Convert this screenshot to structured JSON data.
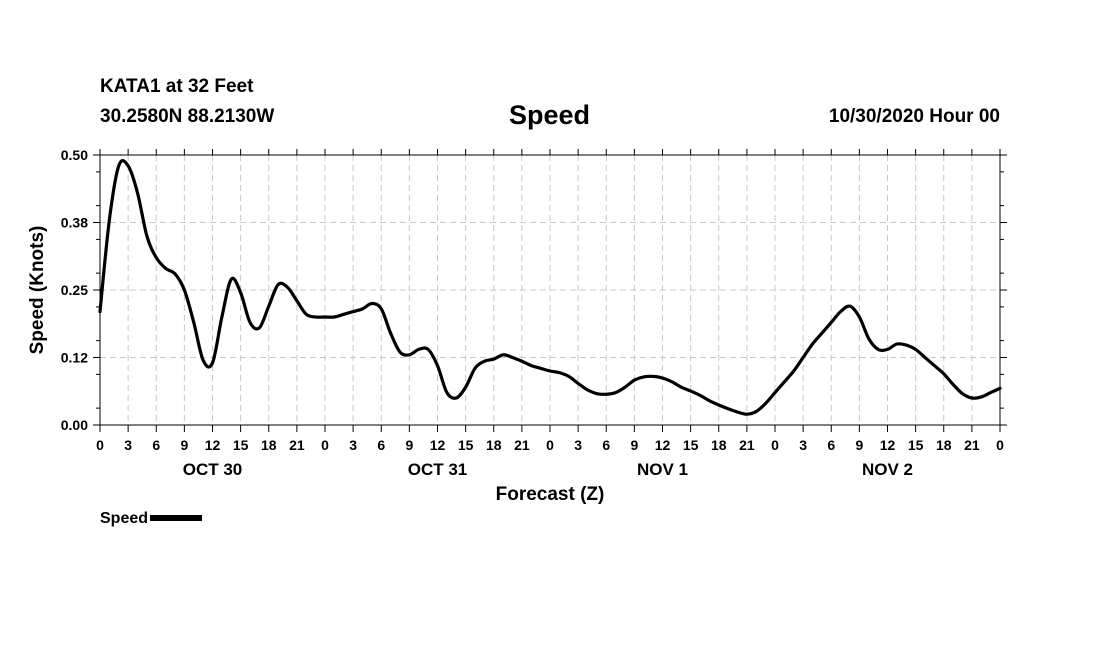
{
  "header": {
    "station": "KATA1 at 32 Feet",
    "coords": "30.2580N 88.2130W",
    "title": "Speed",
    "datetime": "10/30/2020 Hour 00"
  },
  "legend": {
    "label": "Speed"
  },
  "chart_data": {
    "type": "line",
    "title": "Speed",
    "xlabel": "Forecast (Z)",
    "ylabel": "Speed (Knots)",
    "xlim": [
      0,
      96
    ],
    "ylim": [
      0,
      0.5
    ],
    "ytick_labels": [
      "0.00",
      "0.12",
      "0.25",
      "0.38",
      "0.50"
    ],
    "xtick_labels": [
      "0",
      "3",
      "6",
      "9",
      "12",
      "15",
      "18",
      "21",
      "0",
      "3",
      "6",
      "9",
      "12",
      "15",
      "18",
      "21",
      "0",
      "3",
      "6",
      "9",
      "12",
      "15",
      "18",
      "21",
      "0",
      "3",
      "6",
      "9",
      "12",
      "15",
      "18",
      "21",
      "0"
    ],
    "day_labels": [
      {
        "label": "OCT 30",
        "hour": 12
      },
      {
        "label": "OCT 31",
        "hour": 36
      },
      {
        "label": "NOV 1",
        "hour": 60
      },
      {
        "label": "NOV 2",
        "hour": 84
      }
    ],
    "grid": true,
    "legend_position": "bottom-left",
    "series": [
      {
        "name": "Speed",
        "color": "#000000",
        "x": [
          0,
          1,
          2,
          3,
          4,
          5,
          6,
          7,
          8,
          9,
          10,
          11,
          12,
          13,
          14,
          15,
          16,
          17,
          18,
          19,
          20,
          21,
          22,
          23,
          24,
          25,
          26,
          27,
          28,
          29,
          30,
          31,
          32,
          33,
          34,
          35,
          36,
          37,
          38,
          39,
          40,
          41,
          42,
          43,
          44,
          45,
          46,
          47,
          48,
          49,
          50,
          51,
          52,
          53,
          54,
          55,
          56,
          57,
          58,
          59,
          60,
          61,
          62,
          63,
          64,
          65,
          66,
          67,
          68,
          69,
          70,
          71,
          72,
          73,
          74,
          75,
          76,
          77,
          78,
          79,
          80,
          81,
          82,
          83,
          84,
          85,
          86,
          87,
          88,
          89,
          90,
          91,
          92,
          93,
          94,
          95,
          96
        ],
        "values": [
          0.21,
          0.38,
          0.48,
          0.48,
          0.43,
          0.35,
          0.31,
          0.29,
          0.28,
          0.25,
          0.19,
          0.12,
          0.115,
          0.2,
          0.27,
          0.245,
          0.19,
          0.18,
          0.22,
          0.26,
          0.255,
          0.23,
          0.205,
          0.2,
          0.2,
          0.2,
          0.205,
          0.21,
          0.215,
          0.225,
          0.215,
          0.17,
          0.135,
          0.13,
          0.14,
          0.14,
          0.11,
          0.06,
          0.05,
          0.07,
          0.105,
          0.118,
          0.122,
          0.13,
          0.125,
          0.118,
          0.11,
          0.105,
          0.1,
          0.097,
          0.09,
          0.077,
          0.065,
          0.058,
          0.057,
          0.06,
          0.07,
          0.083,
          0.089,
          0.09,
          0.087,
          0.08,
          0.07,
          0.063,
          0.055,
          0.045,
          0.037,
          0.03,
          0.024,
          0.02,
          0.025,
          0.04,
          0.06,
          0.08,
          0.1,
          0.125,
          0.15,
          0.17,
          0.19,
          0.21,
          0.22,
          0.2,
          0.16,
          0.14,
          0.14,
          0.15,
          0.148,
          0.14,
          0.125,
          0.11,
          0.095,
          0.075,
          0.058,
          0.05,
          0.052,
          0.06,
          0.068
        ]
      }
    ]
  }
}
